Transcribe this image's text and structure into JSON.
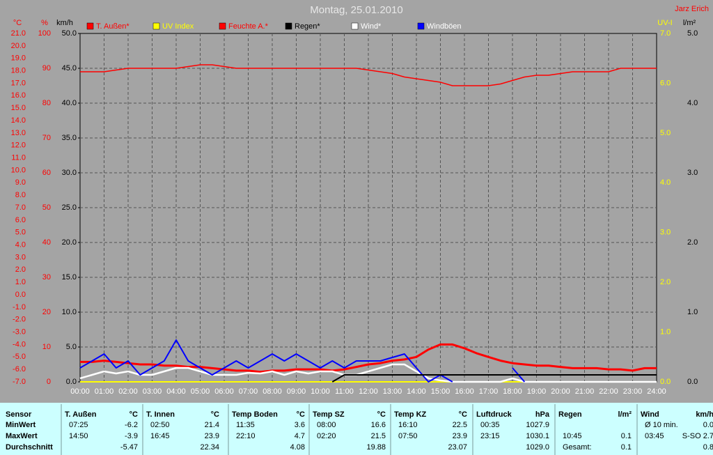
{
  "chart_data": {
    "type": "line",
    "title": "Montag, 25.01.2010",
    "author": "Jarz Erich",
    "x": [
      0,
      0.5,
      1,
      1.5,
      2,
      2.5,
      3,
      3.5,
      4,
      4.5,
      5,
      5.5,
      6,
      6.5,
      7,
      7.5,
      8,
      8.5,
      9,
      9.5,
      10,
      10.5,
      11,
      11.5,
      12,
      12.5,
      13,
      13.5,
      14,
      14.5,
      15,
      15.5,
      16,
      16.5,
      17,
      17.5,
      18,
      18.5,
      19,
      19.5,
      20,
      20.5,
      21,
      21.5,
      22,
      22.5,
      23,
      23.5,
      24
    ],
    "xlim": [
      0,
      24
    ],
    "xticks": [
      {
        "value": 0,
        "label": "00:00"
      },
      {
        "value": 1,
        "label": "01:00"
      },
      {
        "value": 2,
        "label": "02:00"
      },
      {
        "value": 3,
        "label": "03:00"
      },
      {
        "value": 4,
        "label": "04:00"
      },
      {
        "value": 5,
        "label": "05:00"
      },
      {
        "value": 6,
        "label": "06:00"
      },
      {
        "value": 7,
        "label": "07:00"
      },
      {
        "value": 8,
        "label": "08:00"
      },
      {
        "value": 9,
        "label": "09:00"
      },
      {
        "value": 10,
        "label": "10:00"
      },
      {
        "value": 11,
        "label": "11:00"
      },
      {
        "value": 12,
        "label": "12:00"
      },
      {
        "value": 13,
        "label": "13:00"
      },
      {
        "value": 14,
        "label": "14:00"
      },
      {
        "value": 15,
        "label": "15:00"
      },
      {
        "value": 16,
        "label": "16:00"
      },
      {
        "value": 17,
        "label": "17:00"
      },
      {
        "value": 18,
        "label": "18:00"
      },
      {
        "value": 19,
        "label": "19:00"
      },
      {
        "value": 20,
        "label": "20:00"
      },
      {
        "value": 21,
        "label": "21:00"
      },
      {
        "value": 22,
        "label": "22:00"
      },
      {
        "value": 23,
        "label": "23:00"
      },
      {
        "value": 24,
        "label": "24:00"
      }
    ],
    "grid": true,
    "yaxes": [
      {
        "label": "°C",
        "color": "#ff0000",
        "lim": [
          -7,
          21
        ],
        "ticks": [
          {
            "value": -7,
            "label": "-7.0"
          },
          {
            "value": -6,
            "label": "-6.0"
          },
          {
            "value": -5,
            "label": "-5.0"
          },
          {
            "value": -4,
            "label": "-4.0"
          },
          {
            "value": -3,
            "label": "-3.0"
          },
          {
            "value": -2,
            "label": "-2.0"
          },
          {
            "value": -1,
            "label": "-1.0"
          },
          {
            "value": 0,
            "label": "0.0"
          },
          {
            "value": 1,
            "label": "1.0"
          },
          {
            "value": 2,
            "label": "2.0"
          },
          {
            "value": 3,
            "label": "3.0"
          },
          {
            "value": 4,
            "label": "4.0"
          },
          {
            "value": 5,
            "label": "5.0"
          },
          {
            "value": 6,
            "label": "6.0"
          },
          {
            "value": 7,
            "label": "7.0"
          },
          {
            "value": 8,
            "label": "8.0"
          },
          {
            "value": 9,
            "label": "9.0"
          },
          {
            "value": 10,
            "label": "10.0"
          },
          {
            "value": 11,
            "label": "11.0"
          },
          {
            "value": 12,
            "label": "12.0"
          },
          {
            "value": 13,
            "label": "13.0"
          },
          {
            "value": 14,
            "label": "14.0"
          },
          {
            "value": 15,
            "label": "15.0"
          },
          {
            "value": 16,
            "label": "16.0"
          },
          {
            "value": 17,
            "label": "17.0"
          },
          {
            "value": 18,
            "label": "18.0"
          },
          {
            "value": 19,
            "label": "19.0"
          },
          {
            "value": 20,
            "label": "20.0"
          },
          {
            "value": 21,
            "label": "21.0"
          }
        ]
      },
      {
        "label": "%",
        "color": "#ff0000",
        "lim": [
          0,
          100
        ],
        "ticks": [
          0,
          10,
          20,
          30,
          40,
          50,
          60,
          70,
          80,
          90,
          100
        ]
      },
      {
        "label": "km/h",
        "color": "#000000",
        "lim": [
          0,
          50
        ],
        "grid": true,
        "ticks": [
          {
            "value": 0,
            "label": "0.0"
          },
          {
            "value": 5,
            "label": "5.0"
          },
          {
            "value": 10,
            "label": "10.0"
          },
          {
            "value": 15,
            "label": "15.0"
          },
          {
            "value": 20,
            "label": "20.0"
          },
          {
            "value": 25,
            "label": "25.0"
          },
          {
            "value": 30,
            "label": "30.0"
          },
          {
            "value": 35,
            "label": "35.0"
          },
          {
            "value": 40,
            "label": "40.0"
          },
          {
            "value": 45,
            "label": "45.0"
          },
          {
            "value": 50,
            "label": "50.0"
          }
        ]
      },
      {
        "label": "UV-I",
        "color": "#ffff00",
        "lim": [
          0,
          7
        ],
        "ticks": [
          {
            "value": 0,
            "label": "0.0"
          },
          {
            "value": 1,
            "label": "1.0"
          },
          {
            "value": 2,
            "label": "2.0"
          },
          {
            "value": 3,
            "label": "3.0"
          },
          {
            "value": 4,
            "label": "4.0"
          },
          {
            "value": 5,
            "label": "5.0"
          },
          {
            "value": 6,
            "label": "6.0"
          },
          {
            "value": 7,
            "label": "7.0"
          }
        ]
      },
      {
        "label": "l/m²",
        "color": "#000000",
        "lim": [
          0,
          5
        ],
        "ticks": [
          {
            "value": 0,
            "label": "0.0"
          },
          {
            "value": 1,
            "label": "1.0"
          },
          {
            "value": 2,
            "label": "2.0"
          },
          {
            "value": 3,
            "label": "3.0"
          },
          {
            "value": 4,
            "label": "4.0"
          },
          {
            "value": 5,
            "label": "5.0"
          }
        ]
      }
    ],
    "series": [
      {
        "name": "T. Außen*",
        "color": "#ff0000",
        "axis": 0,
        "values": [
          -5.4,
          -5.4,
          -5.3,
          -5.4,
          -5.5,
          -5.6,
          -5.6,
          -5.7,
          -5.7,
          -5.8,
          -5.8,
          -5.9,
          -6.0,
          -6.1,
          -6.1,
          -6.2,
          -6.1,
          -6.1,
          -6.0,
          -6.0,
          -6.0,
          -6.1,
          -6.0,
          -5.8,
          -5.6,
          -5.5,
          -5.3,
          -5.2,
          -5.0,
          -4.4,
          -4.0,
          -4.0,
          -4.3,
          -4.7,
          -5.0,
          -5.3,
          -5.5,
          -5.6,
          -5.7,
          -5.7,
          -5.8,
          -5.9,
          -5.9,
          -5.9,
          -6.0,
          -6.0,
          -6.1,
          -5.9,
          -5.9
        ]
      },
      {
        "name": "UV Index",
        "color": "#ffff00",
        "axis": 3,
        "values": [
          0,
          0,
          0,
          0,
          0,
          0,
          0,
          0,
          0,
          0,
          0,
          0,
          0,
          0,
          0,
          0,
          0,
          0,
          0,
          0,
          0,
          0,
          0,
          0,
          0,
          0,
          0,
          0,
          0,
          0,
          0,
          0,
          0,
          0,
          0,
          0,
          0,
          0,
          0,
          0,
          0,
          0,
          0,
          0,
          0,
          0,
          0,
          0,
          0
        ]
      },
      {
        "name": "Feuchte A.*",
        "color": "#ff0000",
        "axis": 1,
        "values": [
          89,
          89,
          89,
          89.5,
          90,
          90,
          90,
          90,
          90,
          90.5,
          91,
          91,
          90.5,
          90,
          90,
          90,
          90,
          90,
          90,
          90,
          90,
          90,
          90,
          90,
          89.5,
          89,
          88.5,
          87.5,
          87,
          86.5,
          86,
          85,
          85,
          85,
          85,
          85.5,
          86.5,
          87.5,
          88,
          88,
          88.5,
          89,
          89,
          89,
          89,
          90,
          90,
          90,
          90
        ]
      },
      {
        "name": "Regen*",
        "color": "#000000",
        "axis": 4,
        "values": [
          null,
          null,
          null,
          null,
          null,
          null,
          null,
          null,
          null,
          null,
          null,
          null,
          null,
          null,
          null,
          null,
          null,
          null,
          null,
          null,
          null,
          0,
          0.1,
          0.1,
          0.1,
          0.1,
          0.1,
          0.1,
          0.1,
          0.1,
          0.1,
          0.1,
          0.1,
          0.1,
          0.1,
          0.1,
          0.1,
          0.1,
          0.1,
          0.1,
          0.1,
          0.1,
          0.1,
          0.1,
          0.1,
          0.1,
          0.1,
          0.1,
          0.1
        ]
      },
      {
        "name": "Wind*",
        "color": "#ffffff",
        "axis": 2,
        "values": [
          0.5,
          1,
          1.5,
          1.2,
          1.5,
          1,
          1,
          1.5,
          2,
          2,
          1.5,
          1,
          1,
          1,
          1.3,
          1.2,
          1.5,
          1,
          1.5,
          1.2,
          1.5,
          1.5,
          1,
          1,
          1.5,
          2,
          2.5,
          2.5,
          1.5,
          0.5,
          0.2,
          0,
          0,
          0,
          0,
          0,
          0.5,
          0,
          0,
          0,
          0,
          0,
          0,
          0,
          0,
          0,
          0,
          0,
          0
        ]
      },
      {
        "name": "Windböen",
        "color": "#0000ff",
        "axis": 2,
        "values": [
          2,
          3,
          4,
          2,
          3,
          1,
          2,
          3,
          6,
          3,
          2,
          1,
          2,
          3,
          2,
          3,
          4,
          3,
          4,
          3,
          2,
          3,
          2,
          3,
          3,
          3,
          3.5,
          4,
          2,
          0,
          1,
          0,
          null,
          null,
          null,
          null,
          2,
          0,
          null,
          null,
          null,
          null,
          null,
          null,
          null,
          null,
          null,
          null,
          null
        ]
      }
    ]
  },
  "table": {
    "columns": [
      {
        "name": "Sensor"
      },
      {
        "name": "T. Außen",
        "unit": "°C"
      },
      {
        "name": "T. Innen",
        "unit": "°C"
      },
      {
        "name": "Temp Boden",
        "unit": "°C"
      },
      {
        "name": "Temp SZ",
        "unit": "°C"
      },
      {
        "name": "Temp KZ",
        "unit": "°C"
      },
      {
        "name": "Luftdruck",
        "unit": "hPa"
      },
      {
        "name": "Regen",
        "unit": "l/m²"
      },
      {
        "name": "Wind",
        "unit": "km/h"
      }
    ],
    "rows": [
      {
        "label": "MinWert",
        "cells": [
          [
            "07:25",
            "-6.2"
          ],
          [
            "02:50",
            "21.4"
          ],
          [
            "11:35",
            "3.6"
          ],
          [
            "08:00",
            "16.6"
          ],
          [
            "16:10",
            "22.5"
          ],
          [
            "00:35",
            "1027.9"
          ],
          [
            null,
            null
          ],
          [
            "Ø 10 min.",
            "0.0"
          ]
        ]
      },
      {
        "label": "MaxWert",
        "cells": [
          [
            "14:50",
            "-3.9"
          ],
          [
            "16:45",
            "23.9"
          ],
          [
            "22:10",
            "4.7"
          ],
          [
            "02:20",
            "21.5"
          ],
          [
            "07:50",
            "23.9"
          ],
          [
            "23:15",
            "1030.1"
          ],
          [
            "10:45",
            "0.1"
          ],
          [
            "03:45",
            "S-SO 2.7"
          ]
        ]
      },
      {
        "label": "Durchschnitt",
        "cells": [
          [
            null,
            "-5.47"
          ],
          [
            null,
            "22.34"
          ],
          [
            null,
            "4.08"
          ],
          [
            null,
            "19.88"
          ],
          [
            null,
            "23.07"
          ],
          [
            null,
            "1029.0"
          ],
          [
            "Gesamt:",
            "0.1"
          ],
          [
            null,
            "0.8"
          ]
        ]
      }
    ]
  }
}
